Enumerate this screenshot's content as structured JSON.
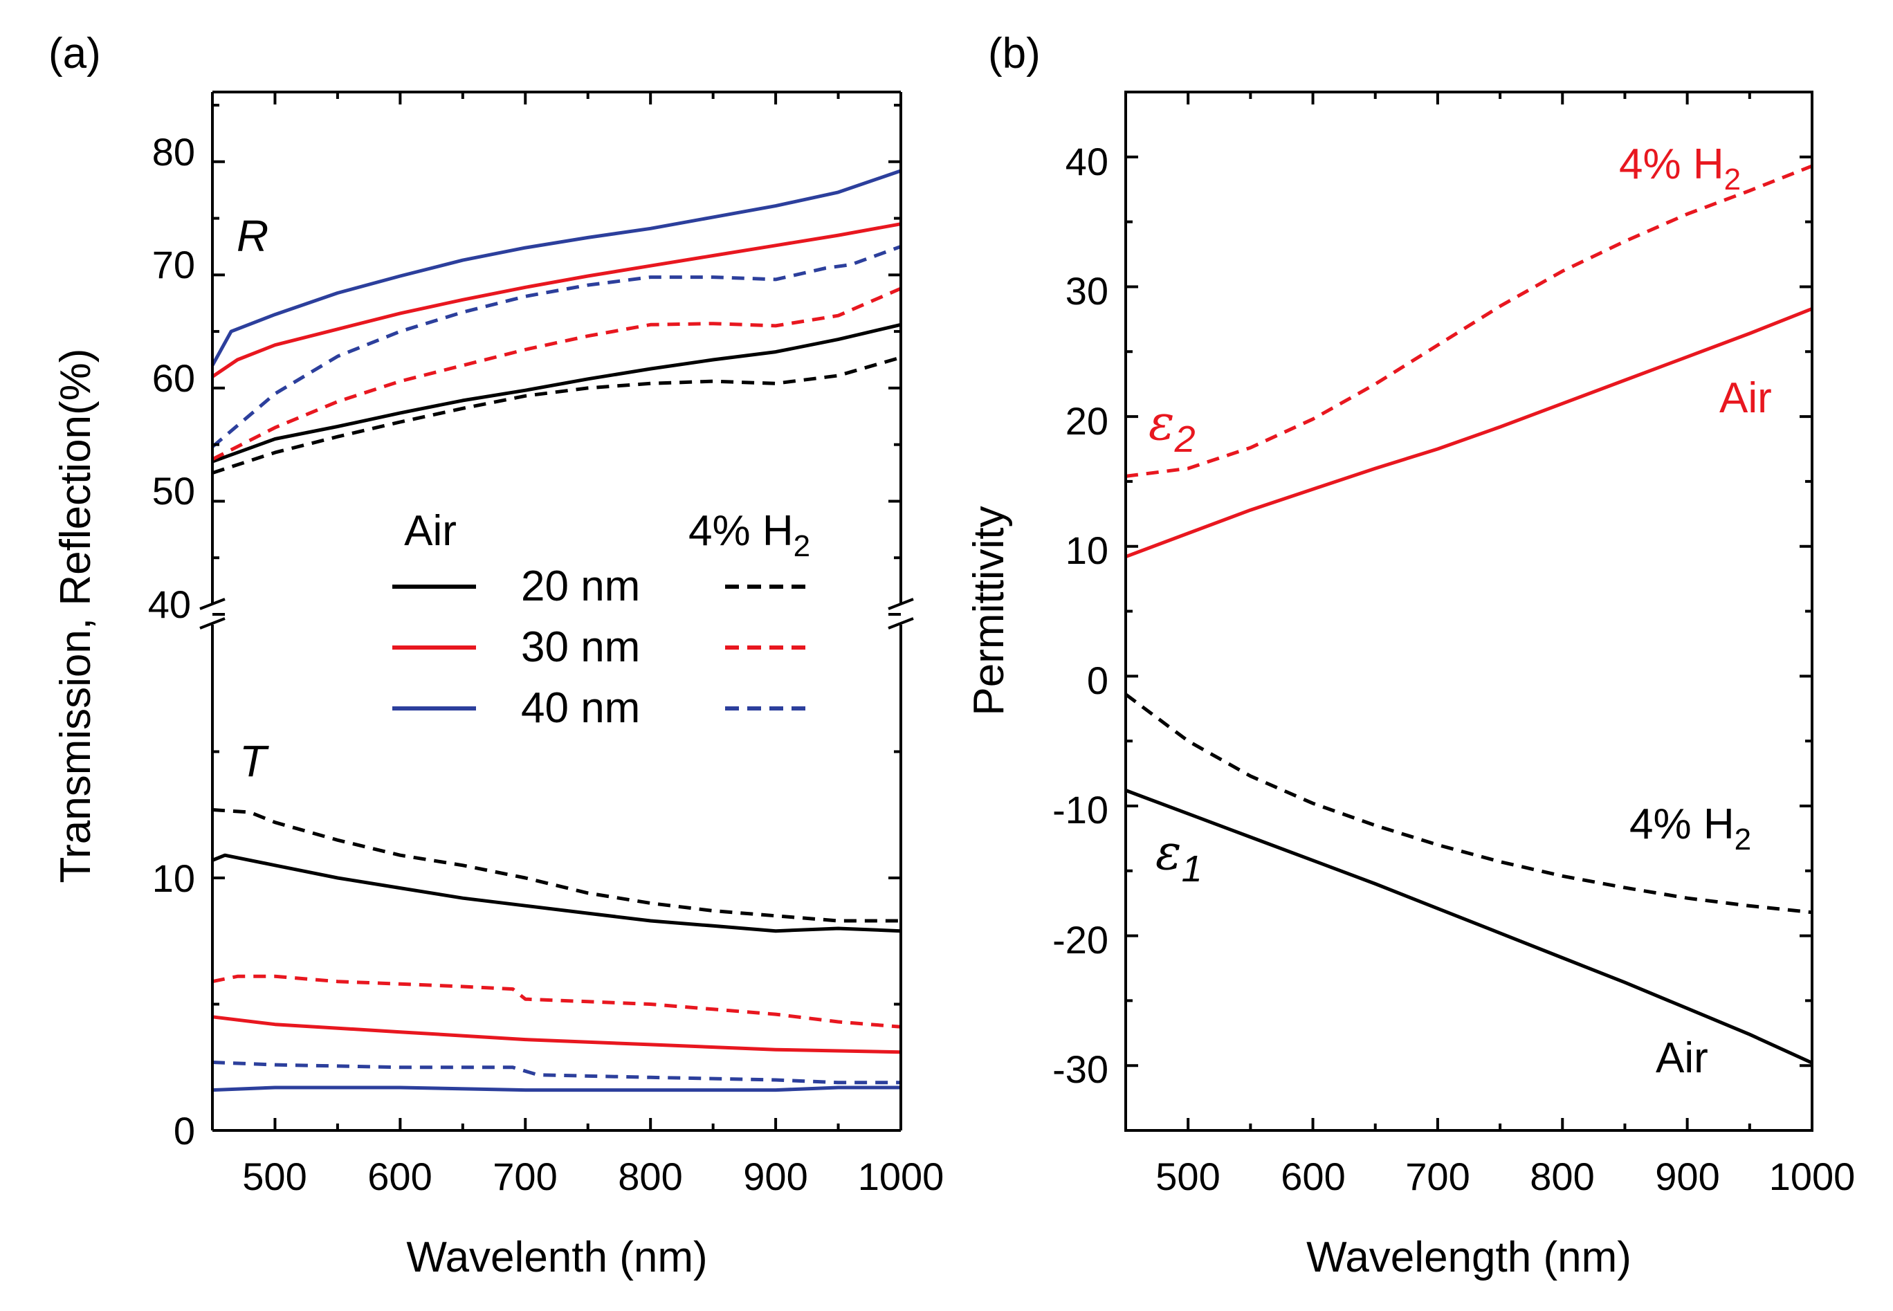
{
  "figure": {
    "colors": {
      "black": "#000000",
      "red": "#e8171f",
      "blue": "#2c3f9c"
    },
    "panel_a_label": "(a)",
    "panel_b_label": "(b)"
  },
  "chart_data": [
    {
      "id": "panel-a",
      "type": "line",
      "title": "",
      "xlabel": "Wavelenth (nm)",
      "ylabel": "Transmission, Reflection(%)",
      "xlim": [
        450,
        1000
      ],
      "xticks": [
        "500",
        "600",
        "700",
        "800",
        "900",
        "1000"
      ],
      "broken_axis": {
        "upper": {
          "ylim": [
            40,
            85
          ],
          "ticks": [
            "40",
            "50",
            "60",
            "70",
            "80"
          ]
        },
        "lower": {
          "ylim": [
            0,
            20
          ],
          "ticks": [
            "0",
            "10"
          ]
        }
      },
      "annotations": {
        "R": "R",
        "T": "T"
      },
      "legend": {
        "col_air": "Air",
        "col_h2": "4% H",
        "col_h2_sub": "2",
        "rows": [
          {
            "label": "20 nm",
            "color": "black"
          },
          {
            "label": "30 nm",
            "color": "red"
          },
          {
            "label": "40 nm",
            "color": "blue"
          }
        ]
      },
      "series": [
        {
          "name": "R 20 nm Air",
          "group": "R",
          "color": "black",
          "dash": false,
          "x": [
            450,
            500,
            550,
            600,
            650,
            700,
            750,
            800,
            850,
            900,
            950,
            1000
          ],
          "y": [
            53.5,
            55.5,
            56.6,
            57.8,
            58.9,
            59.8,
            60.8,
            61.7,
            62.5,
            63.2,
            64.3,
            65.6
          ]
        },
        {
          "name": "R 20 nm 4% H2",
          "group": "R",
          "color": "black",
          "dash": true,
          "x": [
            450,
            500,
            550,
            600,
            650,
            700,
            750,
            800,
            850,
            900,
            950,
            1000
          ],
          "y": [
            52.5,
            54.3,
            55.7,
            57.0,
            58.2,
            59.3,
            60.0,
            60.4,
            60.6,
            60.4,
            61.1,
            62.7
          ]
        },
        {
          "name": "R 30 nm Air",
          "group": "R",
          "color": "red",
          "dash": false,
          "x": [
            450,
            470,
            500,
            550,
            600,
            650,
            700,
            750,
            800,
            850,
            900,
            950,
            1000
          ],
          "y": [
            61.0,
            62.5,
            63.8,
            65.2,
            66.6,
            67.8,
            68.9,
            69.9,
            70.8,
            71.7,
            72.6,
            73.5,
            74.5
          ]
        },
        {
          "name": "R 30 nm 4% H2",
          "group": "R",
          "color": "red",
          "dash": true,
          "x": [
            450,
            500,
            550,
            600,
            650,
            700,
            750,
            800,
            850,
            900,
            950,
            1000
          ],
          "y": [
            53.7,
            56.5,
            58.8,
            60.6,
            62.0,
            63.4,
            64.6,
            65.6,
            65.7,
            65.5,
            66.4,
            68.8
          ]
        },
        {
          "name": "R 40 nm Air",
          "group": "R",
          "color": "blue",
          "dash": false,
          "x": [
            450,
            465,
            500,
            550,
            600,
            650,
            700,
            750,
            800,
            850,
            900,
            950,
            1000
          ],
          "y": [
            62.0,
            65.0,
            66.5,
            68.4,
            69.9,
            71.3,
            72.4,
            73.3,
            74.1,
            75.1,
            76.1,
            77.3,
            79.2
          ]
        },
        {
          "name": "R 40 nm 4% H2",
          "group": "R",
          "color": "blue",
          "dash": true,
          "x": [
            450,
            500,
            550,
            600,
            650,
            700,
            750,
            800,
            850,
            900,
            940,
            960,
            1000
          ],
          "y": [
            54.8,
            59.5,
            62.8,
            65.0,
            66.7,
            68.1,
            69.1,
            69.8,
            69.8,
            69.6,
            70.6,
            70.9,
            72.5
          ]
        },
        {
          "name": "T 20 nm Air",
          "group": "T",
          "color": "black",
          "dash": false,
          "x": [
            450,
            460,
            500,
            550,
            600,
            650,
            700,
            750,
            800,
            850,
            900,
            950,
            1000
          ],
          "y": [
            10.7,
            10.9,
            10.5,
            10.0,
            9.6,
            9.2,
            8.9,
            8.6,
            8.3,
            8.1,
            7.9,
            8.0,
            7.9
          ]
        },
        {
          "name": "T 20 nm 4% H2",
          "group": "T",
          "color": "black",
          "dash": true,
          "x": [
            450,
            480,
            500,
            550,
            600,
            650,
            700,
            750,
            800,
            850,
            900,
            950,
            1000
          ],
          "y": [
            12.7,
            12.6,
            12.2,
            11.5,
            10.9,
            10.5,
            10.0,
            9.4,
            9.0,
            8.7,
            8.5,
            8.3,
            8.3
          ]
        },
        {
          "name": "T 30 nm Air",
          "group": "T",
          "color": "red",
          "dash": false,
          "x": [
            450,
            500,
            600,
            700,
            800,
            900,
            1000
          ],
          "y": [
            4.5,
            4.2,
            3.9,
            3.6,
            3.4,
            3.2,
            3.1
          ]
        },
        {
          "name": "T 30 nm 4% H2",
          "group": "T",
          "color": "red",
          "dash": true,
          "x": [
            450,
            470,
            500,
            550,
            600,
            650,
            690,
            700,
            750,
            800,
            850,
            900,
            950,
            1000
          ],
          "y": [
            5.9,
            6.1,
            6.1,
            5.9,
            5.8,
            5.7,
            5.6,
            5.2,
            5.1,
            5.0,
            4.8,
            4.6,
            4.3,
            4.1
          ]
        },
        {
          "name": "T 40 nm Air",
          "group": "T",
          "color": "blue",
          "dash": false,
          "x": [
            450,
            500,
            600,
            700,
            800,
            900,
            950,
            1000
          ],
          "y": [
            1.6,
            1.7,
            1.7,
            1.6,
            1.6,
            1.6,
            1.7,
            1.7
          ]
        },
        {
          "name": "T 40 nm 4% H2",
          "group": "T",
          "color": "blue",
          "dash": true,
          "x": [
            450,
            500,
            600,
            690,
            710,
            800,
            900,
            950,
            1000
          ],
          "y": [
            2.7,
            2.6,
            2.5,
            2.5,
            2.2,
            2.1,
            2.0,
            1.9,
            1.9
          ]
        }
      ]
    },
    {
      "id": "panel-b",
      "type": "line",
      "title": "",
      "xlabel": "Wavelength (nm)",
      "ylabel": "Permittivity",
      "xlim": [
        450,
        1000
      ],
      "ylim": [
        -35,
        45
      ],
      "xticks": [
        "500",
        "600",
        "700",
        "800",
        "900",
        "1000"
      ],
      "yticks": [
        "-30",
        "-20",
        "-10",
        "0",
        "10",
        "20",
        "30",
        "40"
      ],
      "annotations": {
        "eps2_base": "ε",
        "eps2_sub": "2",
        "eps1_base": "ε",
        "eps1_sub": "1",
        "red_dashed_label": "4% H",
        "red_dashed_label_sub": "2",
        "red_solid_label": "Air",
        "black_dashed_label": "4% H",
        "black_dashed_label_sub": "2",
        "black_solid_label": "Air"
      },
      "series": [
        {
          "name": "ε2 4% H2",
          "color": "red",
          "dash": true,
          "x": [
            450,
            500,
            550,
            600,
            650,
            700,
            750,
            800,
            850,
            900,
            950,
            1000
          ],
          "y": [
            15.4,
            16.0,
            17.6,
            19.8,
            22.5,
            25.5,
            28.5,
            31.2,
            33.5,
            35.6,
            37.4,
            39.3
          ]
        },
        {
          "name": "ε2 Air",
          "color": "red",
          "dash": false,
          "x": [
            450,
            500,
            550,
            600,
            650,
            700,
            750,
            800,
            850,
            900,
            950,
            1000
          ],
          "y": [
            9.2,
            11.0,
            12.8,
            14.4,
            16.0,
            17.5,
            19.2,
            21.0,
            22.8,
            24.6,
            26.4,
            28.3
          ]
        },
        {
          "name": "ε1 4% H2",
          "color": "black",
          "dash": true,
          "x": [
            450,
            500,
            550,
            600,
            650,
            700,
            750,
            800,
            850,
            900,
            950,
            1000
          ],
          "y": [
            -1.4,
            -5.0,
            -7.7,
            -9.8,
            -11.5,
            -13.0,
            -14.3,
            -15.4,
            -16.3,
            -17.1,
            -17.7,
            -18.2
          ]
        },
        {
          "name": "ε1 Air",
          "color": "black",
          "dash": false,
          "x": [
            450,
            500,
            550,
            600,
            650,
            700,
            750,
            800,
            850,
            900,
            950,
            1000
          ],
          "y": [
            -8.8,
            -10.6,
            -12.4,
            -14.2,
            -16.0,
            -17.9,
            -19.8,
            -21.7,
            -23.6,
            -25.6,
            -27.6,
            -29.8
          ]
        }
      ]
    }
  ]
}
